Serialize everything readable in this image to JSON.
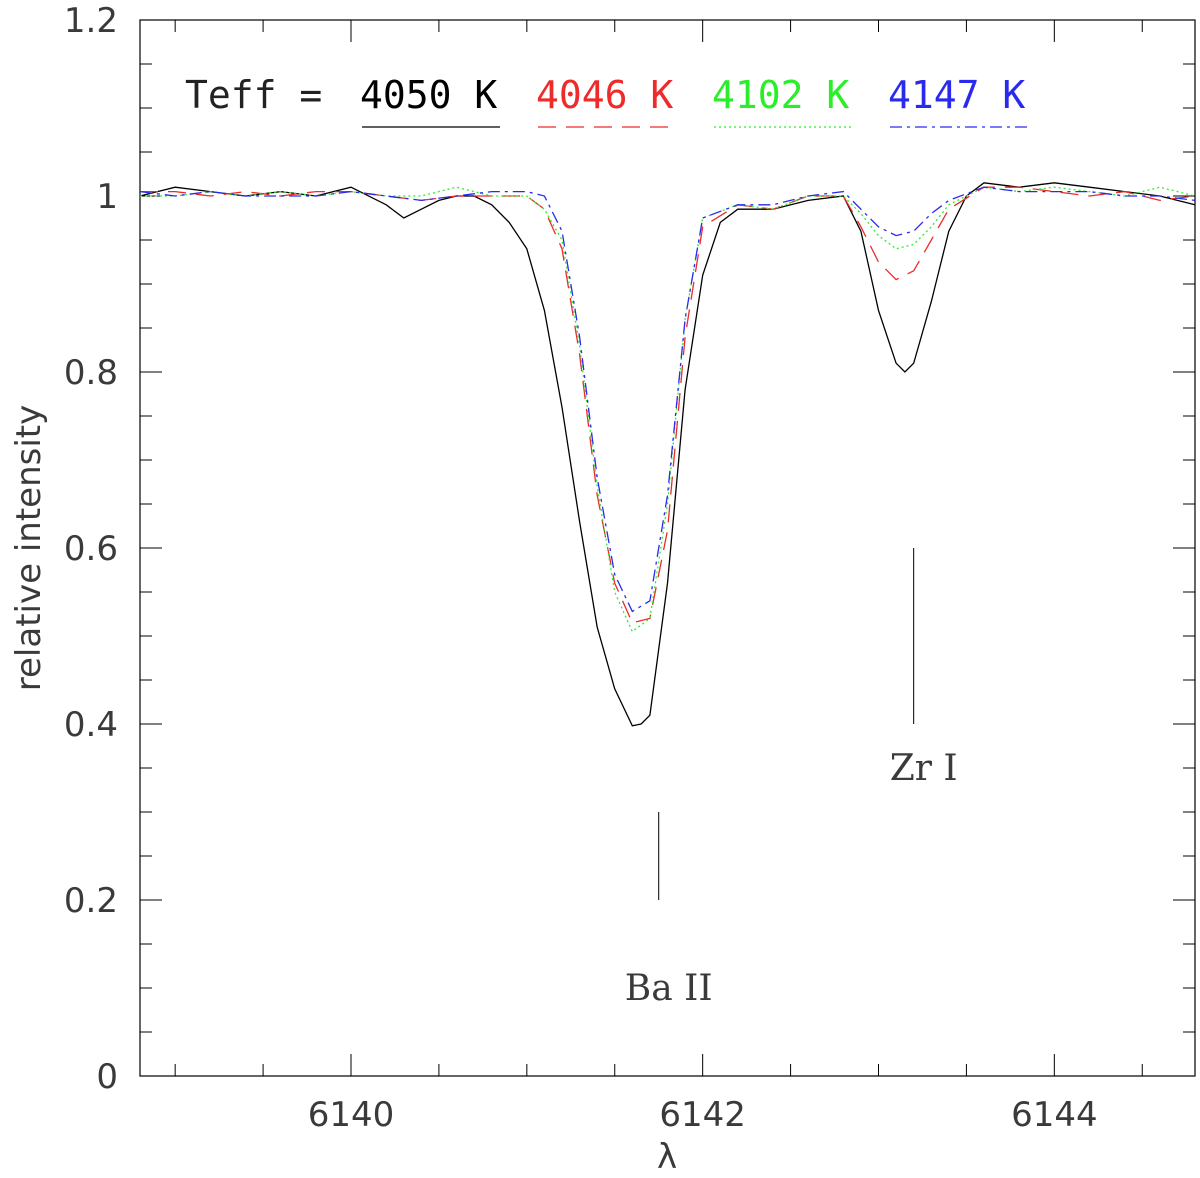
{
  "chart_data": {
    "type": "line",
    "title": "",
    "xlabel": "λ",
    "ylabel": "relative intensity",
    "xlim": [
      6138.8,
      6144.8
    ],
    "ylim": [
      0,
      1.2
    ],
    "x_major_ticks": [
      6140,
      6142,
      6144
    ],
    "x_tick_labels": [
      "6140",
      "6142",
      "6144"
    ],
    "y_major_ticks": [
      0,
      0.2,
      0.4,
      0.6,
      0.8,
      1,
      1.2
    ],
    "y_tick_labels": [
      "0",
      "0.2",
      "0.4",
      "0.6",
      "0.8",
      "1",
      "1.2"
    ],
    "grid": false,
    "legend": {
      "placement": "top",
      "prefix": "Teff =",
      "entries": [
        "4050 K",
        "4046 K",
        "4102 K",
        "4147 K"
      ]
    },
    "series": [
      {
        "name": "4050 K",
        "color": "#000000",
        "dash": "solid",
        "x": [
          6138.8,
          6139.0,
          6139.2,
          6139.4,
          6139.6,
          6139.8,
          6140.0,
          6140.2,
          6140.3,
          6140.4,
          6140.5,
          6140.6,
          6140.7,
          6140.8,
          6140.9,
          6141.0,
          6141.1,
          6141.2,
          6141.3,
          6141.4,
          6141.5,
          6141.6,
          6141.65,
          6141.7,
          6141.8,
          6141.9,
          6142.0,
          6142.1,
          6142.2,
          6142.4,
          6142.6,
          6142.8,
          6142.9,
          6143.0,
          6143.1,
          6143.15,
          6143.2,
          6143.3,
          6143.4,
          6143.5,
          6143.6,
          6143.8,
          6144.0,
          6144.2,
          6144.4,
          6144.6,
          6144.8
        ],
        "y": [
          1.0,
          1.01,
          1.005,
          1.0,
          1.005,
          1.0,
          1.01,
          0.99,
          0.975,
          0.985,
          0.995,
          1.0,
          1.0,
          0.99,
          0.97,
          0.94,
          0.87,
          0.76,
          0.63,
          0.51,
          0.44,
          0.398,
          0.4,
          0.41,
          0.56,
          0.78,
          0.91,
          0.97,
          0.985,
          0.985,
          0.995,
          1.0,
          0.96,
          0.87,
          0.81,
          0.8,
          0.81,
          0.88,
          0.96,
          1.0,
          1.015,
          1.01,
          1.015,
          1.01,
          1.005,
          1.0,
          0.99
        ]
      },
      {
        "name": "4046 K",
        "color": "#ee2a2a",
        "dash": "long-dash",
        "x": [
          6138.8,
          6139.0,
          6139.2,
          6139.4,
          6139.6,
          6139.8,
          6140.0,
          6140.2,
          6140.4,
          6140.6,
          6140.8,
          6141.0,
          6141.1,
          6141.2,
          6141.3,
          6141.4,
          6141.5,
          6141.6,
          6141.7,
          6141.8,
          6141.9,
          6142.0,
          6142.2,
          6142.4,
          6142.6,
          6142.8,
          6142.9,
          6143.0,
          6143.1,
          6143.2,
          6143.3,
          6143.4,
          6143.6,
          6143.8,
          6144.0,
          6144.2,
          6144.4,
          6144.6,
          6144.8
        ],
        "y": [
          1.005,
          1.005,
          1.0,
          1.005,
          1.0,
          1.005,
          1.005,
          1.0,
          0.995,
          1.0,
          1.0,
          1.0,
          0.985,
          0.94,
          0.82,
          0.66,
          0.56,
          0.515,
          0.52,
          0.62,
          0.84,
          0.965,
          0.99,
          0.985,
          1.0,
          1.0,
          0.965,
          0.925,
          0.905,
          0.915,
          0.95,
          0.985,
          1.01,
          1.01,
          1.005,
          1.0,
          1.005,
          0.995,
          1.0
        ]
      },
      {
        "name": "4102 K",
        "color": "#2aee2a",
        "dash": "dotted",
        "x": [
          6138.8,
          6139.0,
          6139.2,
          6139.4,
          6139.6,
          6139.8,
          6140.0,
          6140.2,
          6140.4,
          6140.6,
          6140.8,
          6141.0,
          6141.1,
          6141.2,
          6141.3,
          6141.4,
          6141.5,
          6141.6,
          6141.7,
          6141.8,
          6141.9,
          6142.0,
          6142.2,
          6142.4,
          6142.6,
          6142.8,
          6142.9,
          6143.0,
          6143.1,
          6143.2,
          6143.3,
          6143.4,
          6143.6,
          6143.8,
          6144.0,
          6144.2,
          6144.4,
          6144.6,
          6144.8
        ],
        "y": [
          1.0,
          1.0,
          1.005,
          1.0,
          1.005,
          1.0,
          1.005,
          1.0,
          1.0,
          1.01,
          1.0,
          1.0,
          0.985,
          0.95,
          0.83,
          0.67,
          0.55,
          0.505,
          0.52,
          0.65,
          0.86,
          0.975,
          0.99,
          0.985,
          1.0,
          1.0,
          0.98,
          0.955,
          0.94,
          0.945,
          0.965,
          0.99,
          1.01,
          1.005,
          1.01,
          1.005,
          1.0,
          1.01,
          1.0
        ]
      },
      {
        "name": "4147 K",
        "color": "#2a2aee",
        "dash": "dash-dot",
        "x": [
          6138.8,
          6139.0,
          6139.2,
          6139.4,
          6139.6,
          6139.8,
          6140.0,
          6140.2,
          6140.4,
          6140.6,
          6140.8,
          6141.0,
          6141.1,
          6141.2,
          6141.3,
          6141.4,
          6141.5,
          6141.6,
          6141.7,
          6141.8,
          6141.9,
          6142.0,
          6142.2,
          6142.4,
          6142.6,
          6142.8,
          6142.9,
          6143.0,
          6143.1,
          6143.2,
          6143.3,
          6143.4,
          6143.6,
          6143.8,
          6144.0,
          6144.2,
          6144.4,
          6144.6,
          6144.8
        ],
        "y": [
          1.005,
          1.0,
          1.005,
          1.0,
          1.0,
          1.0,
          1.005,
          1.0,
          0.995,
          1.0,
          1.005,
          1.005,
          1.0,
          0.96,
          0.84,
          0.68,
          0.57,
          0.528,
          0.54,
          0.66,
          0.86,
          0.975,
          0.99,
          0.99,
          1.0,
          1.005,
          0.985,
          0.965,
          0.955,
          0.96,
          0.98,
          0.995,
          1.01,
          1.005,
          1.005,
          1.005,
          1.0,
          1.0,
          0.995
        ]
      }
    ],
    "annotations": [
      {
        "label": "Ba II",
        "x": 6141.75,
        "line_y": [
          0.2,
          0.3
        ],
        "label_y": 0.1
      },
      {
        "label": "Zr I",
        "x": 6143.2,
        "line_y": [
          0.4,
          0.6
        ],
        "label_y": 0.35
      }
    ]
  }
}
